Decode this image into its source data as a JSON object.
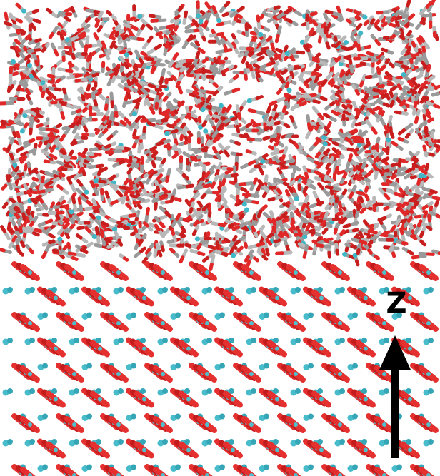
{
  "axis_label": "Z"
}
